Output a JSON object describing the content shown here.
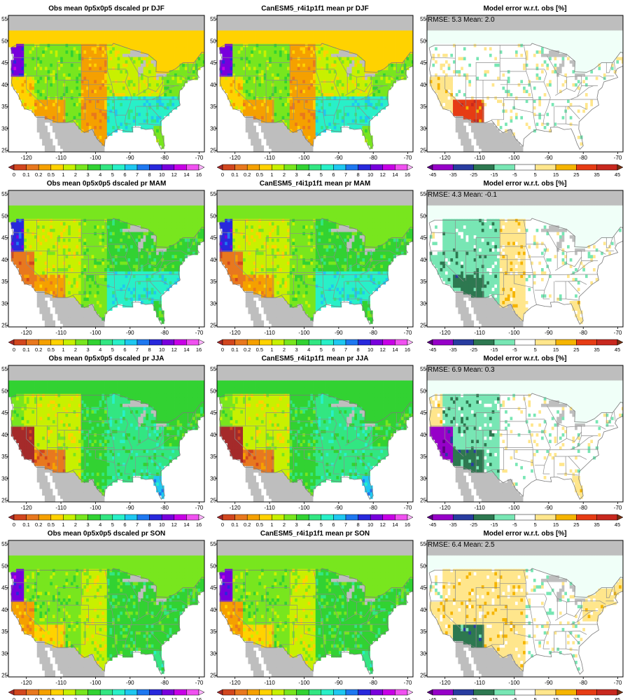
{
  "colors": {
    "ocean": "#ffffff",
    "out_of_domain": "#bebebe",
    "land_missing": "#bebebe",
    "state_border": "#8c8c8c"
  },
  "precip_scale": {
    "labels": [
      "0",
      "0.1",
      "0.2",
      "0.5",
      "1",
      "2",
      "3",
      "4",
      "5",
      "6",
      "7",
      "8",
      "10",
      "12",
      "14",
      "16"
    ],
    "colors": [
      "#a52a2a",
      "#d2461e",
      "#e8781e",
      "#f5a000",
      "#ffd200",
      "#c8f000",
      "#78e61e",
      "#32d232",
      "#32e682",
      "#28f0c8",
      "#1ec8f0",
      "#1e78f0",
      "#2828dc",
      "#7800dc",
      "#c800e6",
      "#f050f0",
      "#ffb4ff"
    ]
  },
  "error_scale": {
    "labels": [
      "-45",
      "-35",
      "-25",
      "-15",
      "-5",
      "5",
      "15",
      "25",
      "35",
      "45"
    ],
    "colors": [
      "#5a0082",
      "#9600c8",
      "#283ca0",
      "#2d7850",
      "#78e6b4",
      "#ffffff",
      "#ffe68c",
      "#f5b400",
      "#e63c14",
      "#c8281e",
      "#783214"
    ]
  },
  "axes": {
    "x_ticks": [
      "-120",
      "-110",
      "-100",
      "-90",
      "-80",
      "-70"
    ],
    "y_ticks": [
      "55",
      "50",
      "45",
      "40",
      "35",
      "30",
      "25"
    ]
  },
  "rows": [
    {
      "season": "DJF",
      "obs_title": "Obs mean 0p5x0p5 dscaled pr DJF",
      "model_title": "CanESM5_r4i1p1f1 mean pr DJF",
      "error_title": "Model error w.r.t. obs [%]",
      "stats": "RMSE: 5.3  Mean: 2.0",
      "obs_regions": {
        "nw": 13,
        "west": 6,
        "plains": 3,
        "midwest": 5,
        "southeast": 9,
        "northeast": 6,
        "florida": 6,
        "california": 4,
        "southwest": 3
      },
      "model_regions": {
        "nw": 13,
        "west": 6,
        "plains": 3,
        "midwest": 5,
        "southeast": 9,
        "northeast": 6,
        "florida": 6,
        "california": 4,
        "southwest": 3
      },
      "err_regions": {
        "nw": 5,
        "west": 5,
        "plains": 5,
        "midwest": 5,
        "southeast": 5,
        "northeast": 5,
        "florida": 5,
        "california": 6,
        "southwest": 8
      }
    },
    {
      "season": "MAM",
      "obs_title": "Obs mean 0p5x0p5 dscaled pr MAM",
      "model_title": "CanESM5_r4i1p1f1 mean pr MAM",
      "error_title": "Model error w.r.t. obs [%]",
      "stats": "RMSE: 4.3  Mean: -0.1",
      "obs_regions": {
        "nw": 12,
        "west": 5,
        "plains": 6,
        "midwest": 7,
        "southeast": 9,
        "northeast": 7,
        "florida": 7,
        "california": 2,
        "southwest": 3
      },
      "model_regions": {
        "nw": 12,
        "west": 5,
        "plains": 6,
        "midwest": 7,
        "southeast": 9,
        "northeast": 7,
        "florida": 7,
        "california": 2,
        "southwest": 3
      },
      "err_regions": {
        "nw": 5,
        "west": 4,
        "plains": 6,
        "midwest": 5,
        "southeast": 5,
        "northeast": 5,
        "florida": 6,
        "california": 4,
        "southwest": 3
      }
    },
    {
      "season": "JJA",
      "obs_title": "Obs mean 0p5x0p5 dscaled pr JJA",
      "model_title": "CanESM5_r4i1p1f1 mean pr JJA",
      "error_title": "Model error w.r.t. obs [%]",
      "stats": "RMSE: 6.9  Mean: 0.3",
      "obs_regions": {
        "nw": 6,
        "west": 5,
        "plains": 7,
        "midwest": 8,
        "southeast": 8,
        "northeast": 7,
        "florida": 10,
        "california": 0,
        "southwest": 2
      },
      "model_regions": {
        "nw": 6,
        "west": 5,
        "plains": 7,
        "midwest": 8,
        "southeast": 8,
        "northeast": 7,
        "florida": 10,
        "california": 0,
        "southwest": 2
      },
      "err_regions": {
        "nw": 6,
        "west": 4,
        "plains": 5,
        "midwest": 5,
        "southeast": 5,
        "northeast": 5,
        "florida": 6,
        "california": 1,
        "southwest": 3
      }
    },
    {
      "season": "SON",
      "obs_title": "Obs mean 0p5x0p5 dscaled pr SON",
      "model_title": "CanESM5_r4i1p1f1 mean pr SON",
      "error_title": "Model error w.r.t. obs [%]",
      "stats": "RMSE: 6.4  Mean: 2.5",
      "obs_regions": {
        "nw": 13,
        "west": 6,
        "plains": 5,
        "midwest": 7,
        "southeast": 7,
        "northeast": 7,
        "florida": 8,
        "california": 3,
        "southwest": 4
      },
      "model_regions": {
        "nw": 13,
        "west": 6,
        "plains": 5,
        "midwest": 7,
        "southeast": 7,
        "northeast": 7,
        "florida": 8,
        "california": 3,
        "southwest": 4
      },
      "err_regions": {
        "nw": 5,
        "west": 6,
        "plains": 6,
        "midwest": 5,
        "southeast": 5,
        "northeast": 6,
        "florida": 5,
        "california": 6,
        "southwest": 3
      }
    }
  ]
}
